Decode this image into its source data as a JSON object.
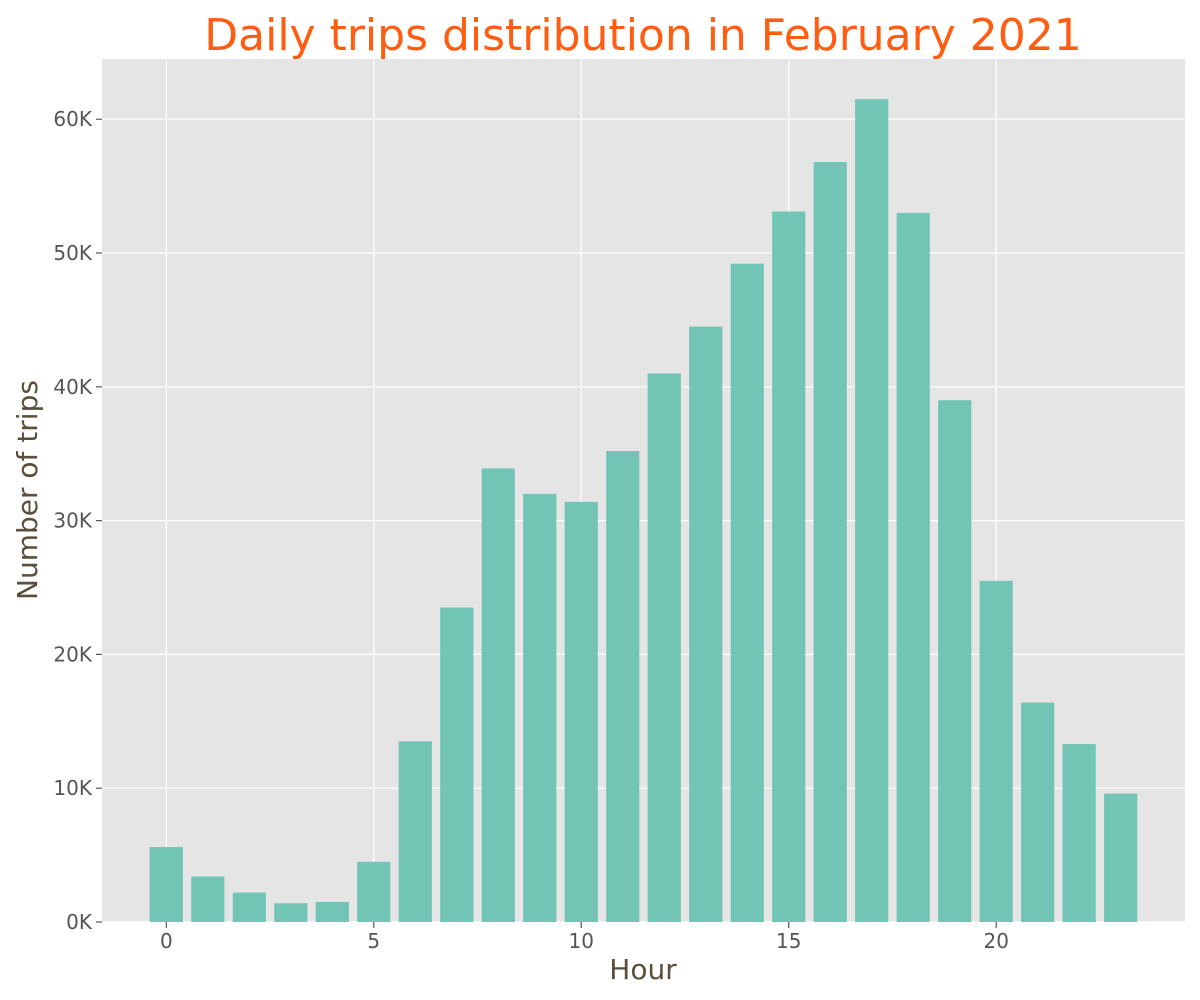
{
  "chart_data": {
    "type": "bar",
    "title": "Daily trips distribution in February 2021",
    "xlabel": "Hour",
    "ylabel": "Number of trips",
    "x": [
      0,
      1,
      2,
      3,
      4,
      5,
      6,
      7,
      8,
      9,
      10,
      11,
      12,
      13,
      14,
      15,
      16,
      17,
      18,
      19,
      20,
      21,
      22,
      23
    ],
    "values": [
      5600,
      3400,
      2200,
      1400,
      1500,
      4500,
      13500,
      23500,
      33900,
      32000,
      31400,
      35200,
      41000,
      44500,
      49200,
      53100,
      56800,
      61500,
      53000,
      39000,
      25500,
      16400,
      13300,
      9600
    ],
    "xlim": [
      -1.55,
      24.55
    ],
    "ylim": [
      0,
      64500
    ],
    "x_ticks": [
      0,
      5,
      10,
      15,
      20
    ],
    "x_tick_labels": [
      "0",
      "5",
      "10",
      "15",
      "20"
    ],
    "y_ticks": [
      0,
      10000,
      20000,
      30000,
      40000,
      50000,
      60000
    ],
    "y_tick_labels": [
      "0K",
      "10K",
      "20K",
      "30K",
      "40K",
      "50K",
      "60K"
    ],
    "grid": true,
    "bar_color": "#72c5b4",
    "plot_background": "#e5e5e5"
  }
}
